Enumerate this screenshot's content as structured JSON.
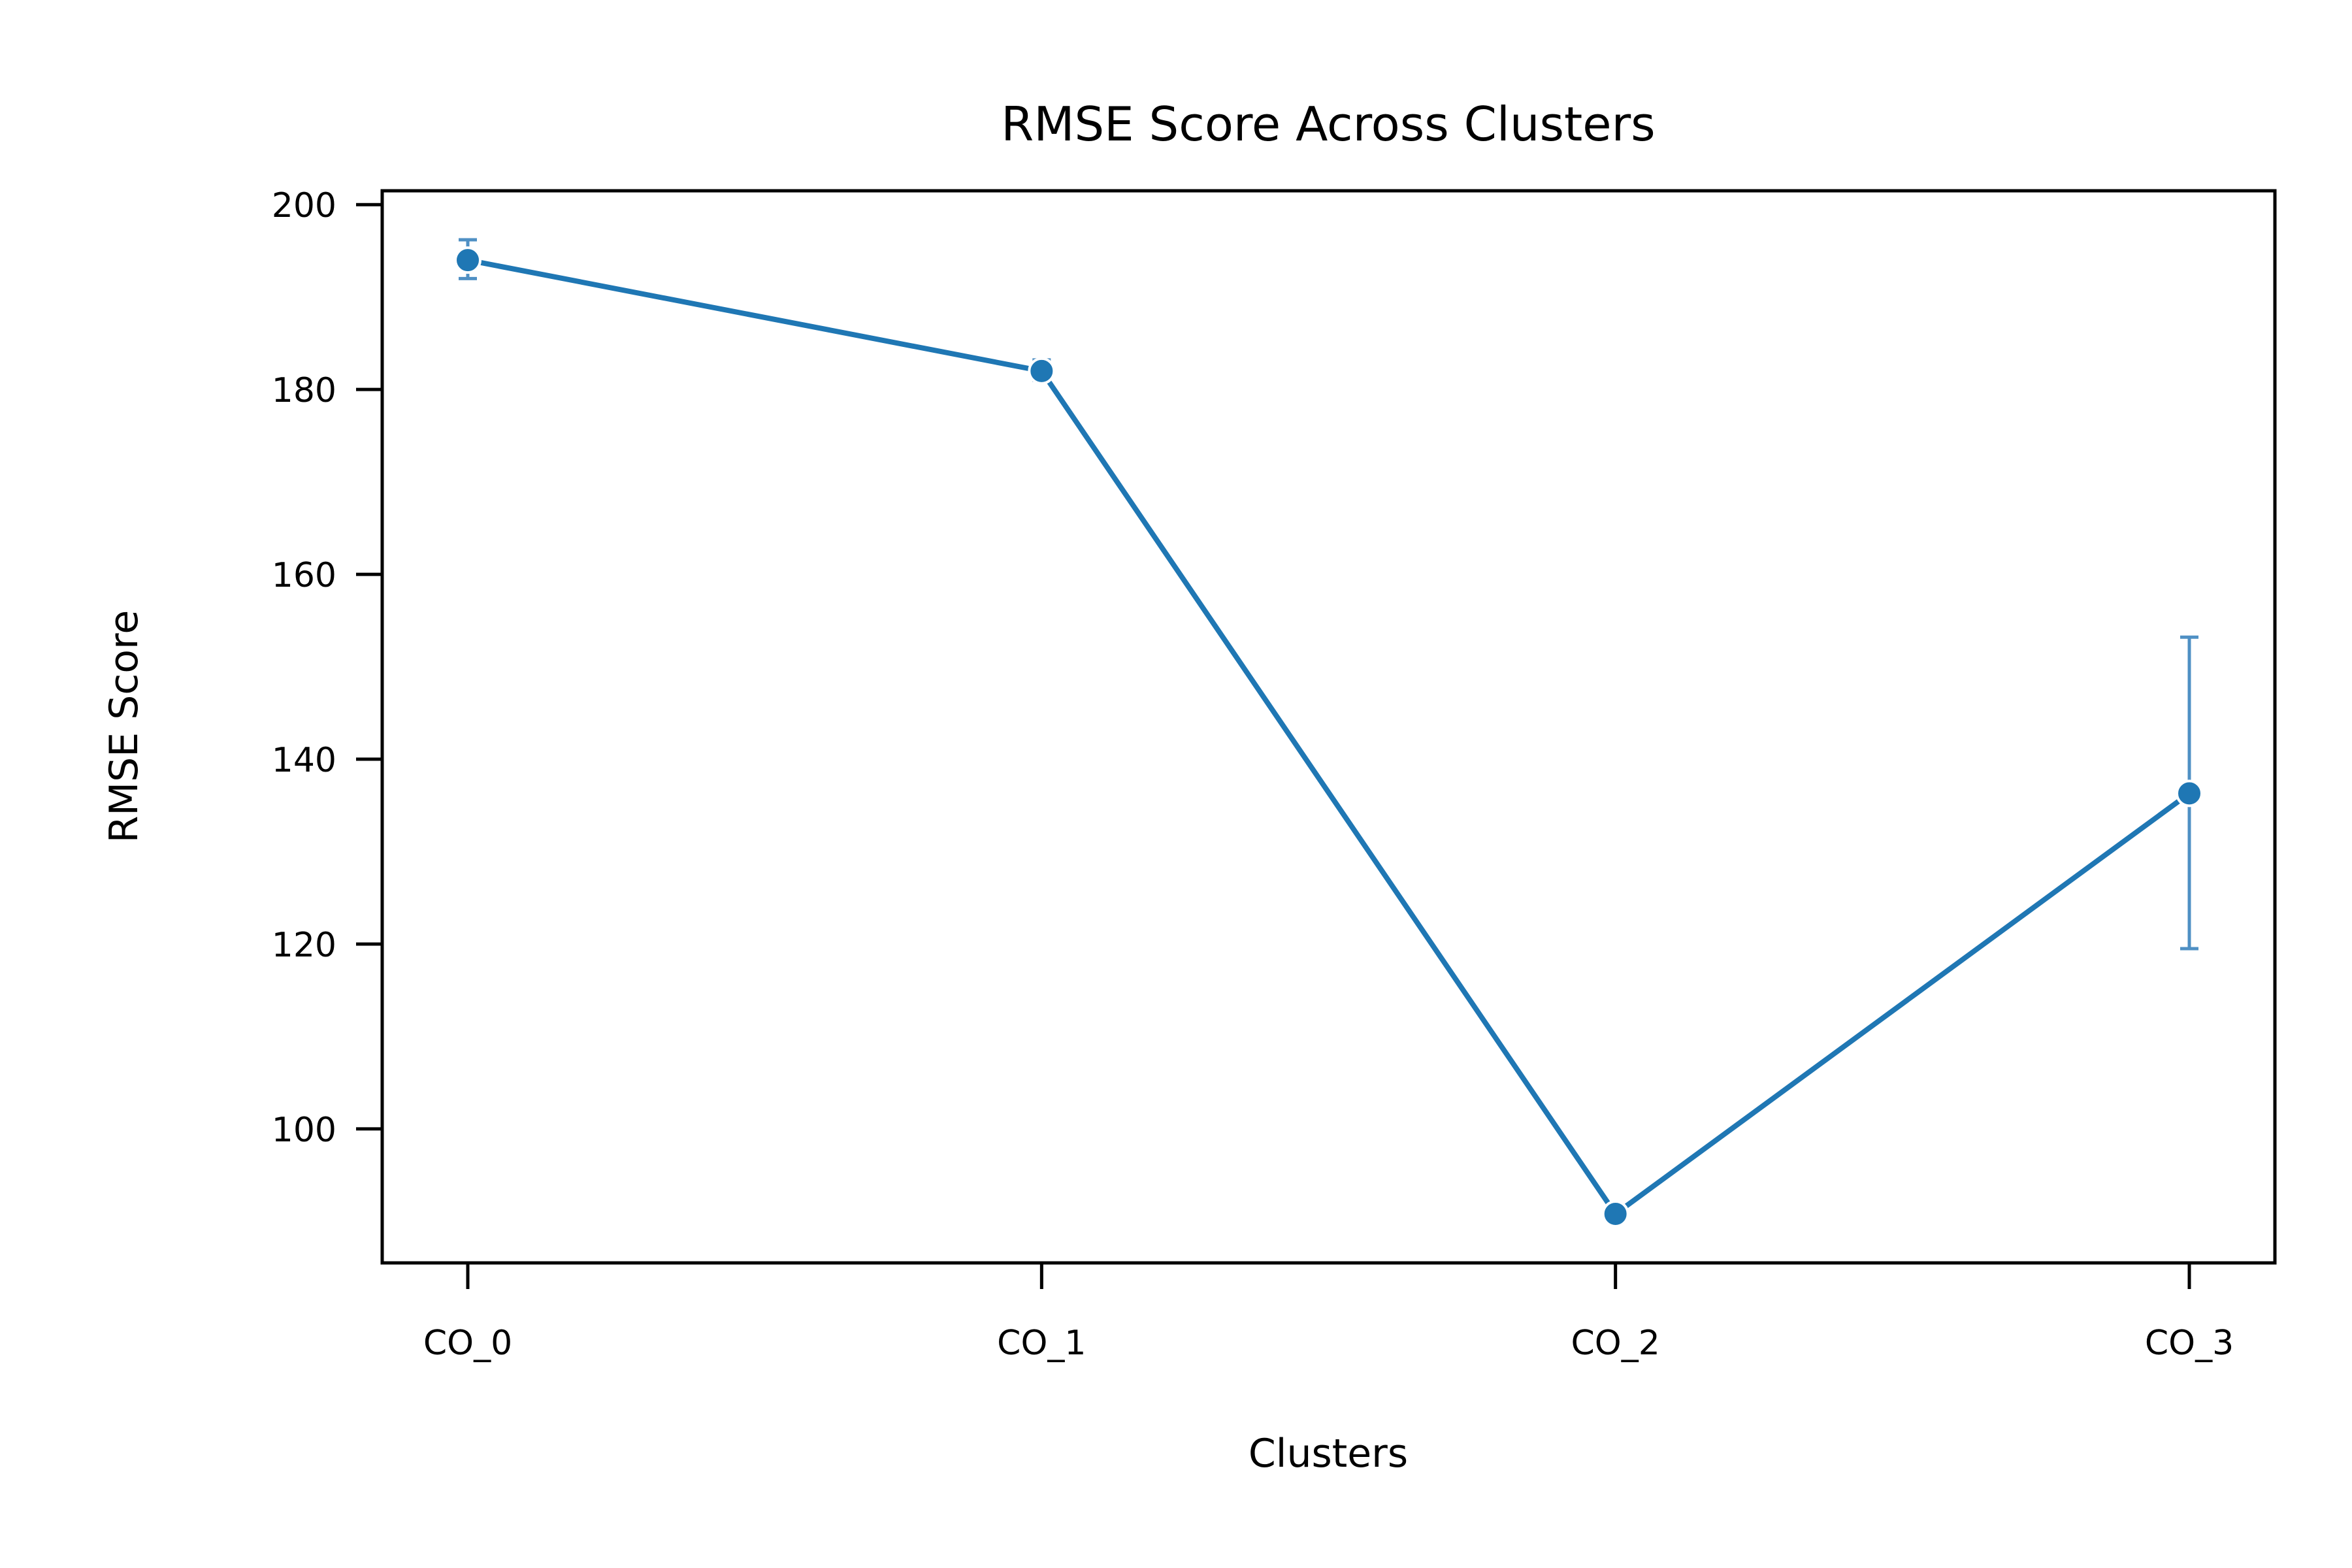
{
  "chart_data": {
    "type": "line",
    "title": "RMSE Score Across Clusters",
    "xlabel": "Clusters",
    "ylabel": "RMSE Score",
    "categories": [
      "CO_0",
      "CO_1",
      "CO_2",
      "CO_3"
    ],
    "series": [
      {
        "values": [
          194,
          182,
          90.8,
          136.3
        ],
        "error_low": [
          192,
          181,
          90.4,
          119.5
        ],
        "error_high": [
          196.2,
          183.2,
          91.3,
          153.2
        ]
      }
    ],
    "ylim": [
      85.5,
      201.5
    ],
    "yticks": [
      100,
      120,
      140,
      160,
      180,
      200
    ],
    "grid": false,
    "legend": "none",
    "colors": {
      "line": "#1f77b4",
      "errorbar": "#4f90c4",
      "axes": "#000000"
    }
  }
}
